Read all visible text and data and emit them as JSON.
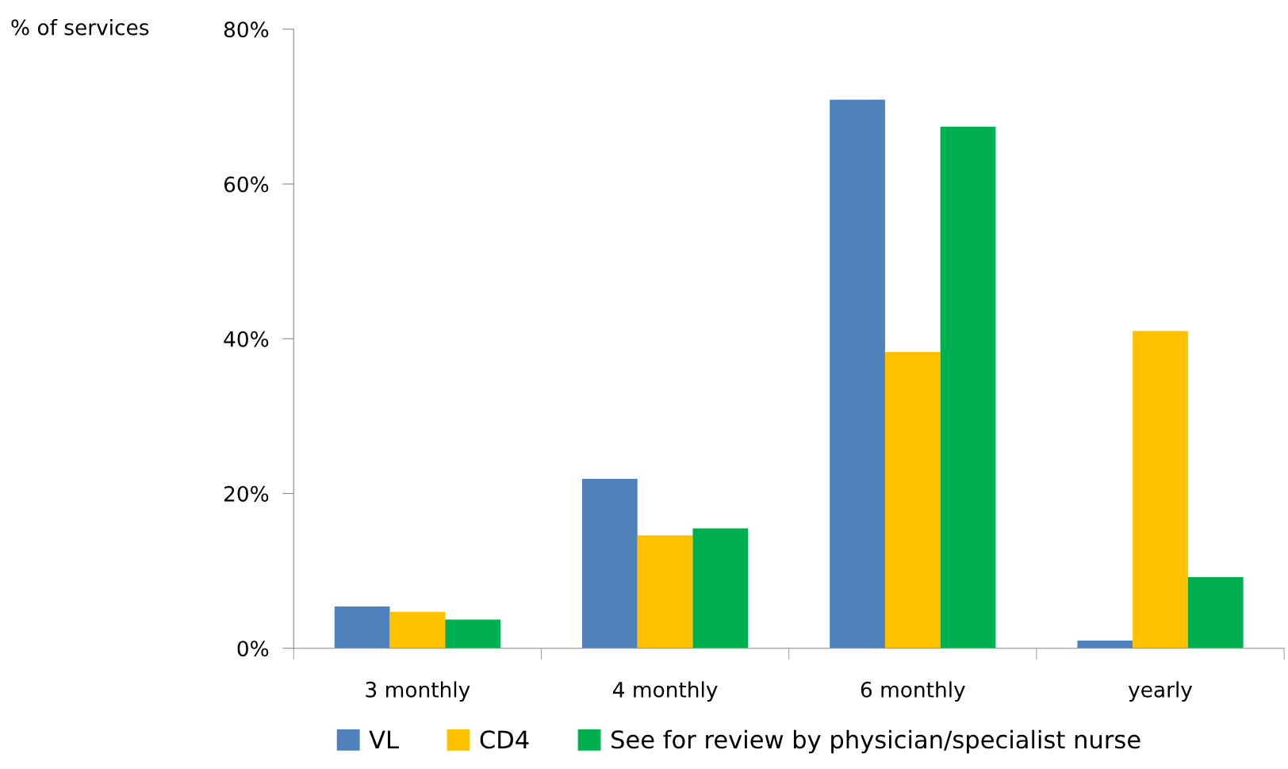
{
  "chart_data": {
    "type": "bar",
    "ylabel": "% of services",
    "categories": [
      "3 monthly",
      "4 monthly",
      "6 monthly",
      "yearly"
    ],
    "series": [
      {
        "name": "VL",
        "color": "#4f81bd",
        "values": [
          5.4,
          21.9,
          70.9,
          1.0
        ]
      },
      {
        "name": "CD4",
        "color": "#ffc000",
        "values": [
          4.7,
          14.6,
          38.3,
          41.0
        ]
      },
      {
        "name": "See for review by physician/specialist nurse",
        "color": "#00b050",
        "values": [
          3.7,
          15.5,
          67.4,
          9.2
        ]
      }
    ],
    "ylim": [
      0,
      80
    ],
    "yticks": [
      {
        "value": 0,
        "label": "0%"
      },
      {
        "value": 20,
        "label": "20%"
      },
      {
        "value": 40,
        "label": "40%"
      },
      {
        "value": 60,
        "label": "60%"
      },
      {
        "value": 80,
        "label": "80%"
      }
    ],
    "grid": false,
    "legend": "bottom"
  }
}
